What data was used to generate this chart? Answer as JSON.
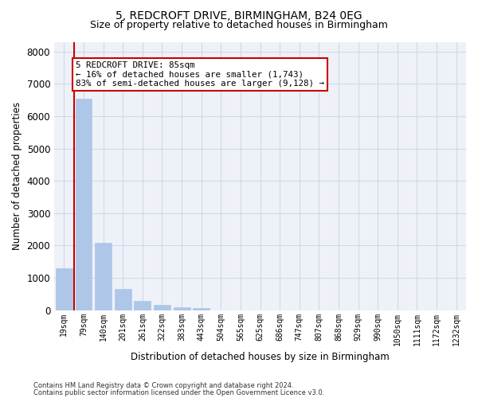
{
  "title_line1": "5, REDCROFT DRIVE, BIRMINGHAM, B24 0EG",
  "title_line2": "Size of property relative to detached houses in Birmingham",
  "xlabel": "Distribution of detached houses by size in Birmingham",
  "ylabel": "Number of detached properties",
  "footnote1": "Contains HM Land Registry data © Crown copyright and database right 2024.",
  "footnote2": "Contains public sector information licensed under the Open Government Licence v3.0.",
  "bar_labels": [
    "19sqm",
    "79sqm",
    "140sqm",
    "201sqm",
    "261sqm",
    "322sqm",
    "383sqm",
    "443sqm",
    "504sqm",
    "565sqm",
    "625sqm",
    "686sqm",
    "747sqm",
    "807sqm",
    "868sqm",
    "929sqm",
    "990sqm",
    "1050sqm",
    "1111sqm",
    "1172sqm",
    "1232sqm"
  ],
  "bar_values": [
    1300,
    6550,
    2080,
    670,
    280,
    155,
    85,
    75,
    0,
    0,
    0,
    0,
    0,
    0,
    0,
    0,
    0,
    0,
    0,
    0,
    0
  ],
  "bar_color": "#aec6e8",
  "bar_edgecolor": "#aec6e8",
  "vline_color": "#cc0000",
  "vline_x": 0.5,
  "annotation_text": "5 REDCROFT DRIVE: 85sqm\n← 16% of detached houses are smaller (1,743)\n83% of semi-detached houses are larger (9,128) →",
  "annotation_box_color": "#ffffff",
  "annotation_box_edgecolor": "#cc0000",
  "ylim": [
    0,
    8300
  ],
  "yticks": [
    0,
    1000,
    2000,
    3000,
    4000,
    5000,
    6000,
    7000,
    8000
  ],
  "grid_color": "#d0d8e8",
  "bg_color": "#eef2f8",
  "title_fontsize": 10,
  "subtitle_fontsize": 9
}
